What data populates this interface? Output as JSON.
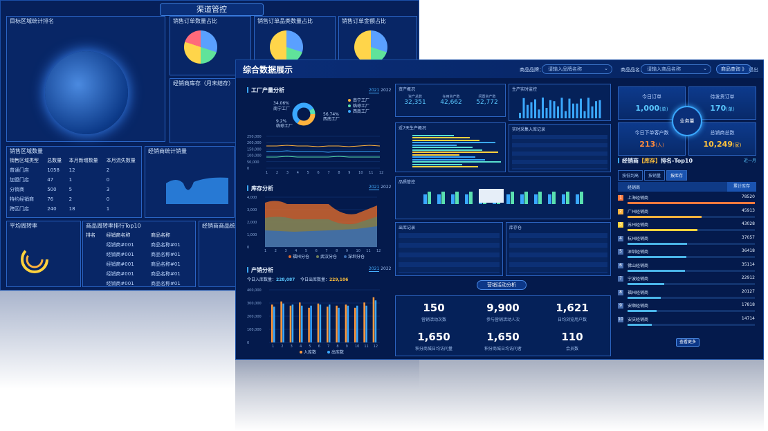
{
  "back": {
    "title": "渠道管控",
    "panels": {
      "region_rank": "目标区域统计排名",
      "sales_order_ratio": "销售订单数量占比",
      "sales_category_ratio": "销售订单品类数量占比",
      "sales_amount_ratio": "销售订单金额占比",
      "dealer_inventory": "经销商库存（月末结存）",
      "sales_region_count": "销售区域数量",
      "dealer_sales": "经销商统计销量",
      "avg_turnover": "平均周转率",
      "product_flow_top10": "商品周转率排行Top10",
      "dealer_product_list": "经销商商品统计"
    },
    "region_table": {
      "headers": [
        "销售区域类型",
        "总数量",
        "本月新增数量",
        "本月流失数量"
      ],
      "rows": [
        [
          "普通门店",
          "1058",
          "12",
          "2"
        ],
        [
          "加盟门店",
          "47",
          "1",
          "0"
        ],
        [
          "分销商",
          "500",
          "5",
          "3"
        ],
        [
          "特约经销商",
          "76",
          "2",
          "0"
        ],
        [
          "跨区门店",
          "240",
          "18",
          "1"
        ]
      ]
    },
    "top10_table": {
      "headers": [
        "排名",
        "经销商名称",
        "商品名称"
      ],
      "rows": [
        [
          "经销商#001",
          "商品名称#01"
        ],
        [
          "经销商#001",
          "商品名称#01"
        ],
        [
          "经销商#001",
          "商品名称#01"
        ],
        [
          "经销商#001",
          "商品名称#01"
        ],
        [
          "经销商#001",
          "商品名称#01"
        ]
      ]
    }
  },
  "front": {
    "title": "综合数据展示",
    "brand_label": "商品品牌：",
    "brand_placeholder": "请输入品牌名称",
    "product_label": "商品品名：",
    "product_placeholder": "请输入商品名称",
    "query_button": "商品查询 》",
    "back_button": "退出",
    "factory": {
      "title": "工厂产量分析",
      "year_on": "2021",
      "year_off": "2022",
      "donut": {
        "slices": [
          {
            "label": "南宁工厂",
            "pct": 34.06
          },
          {
            "label": "西南工厂",
            "pct": 56.74
          },
          {
            "label": "临琼工厂",
            "pct": 9.2
          }
        ]
      },
      "labels": [
        "34.06%",
        "56.74%",
        "9.2%"
      ],
      "legend": [
        "南宁工厂",
        "临琼工厂",
        "西南工厂"
      ],
      "y_ticks": [
        "250,000",
        "200,000",
        "150,000",
        "100,000",
        "50,000",
        "0"
      ],
      "x_ticks": [
        "1",
        "2",
        "3",
        "4",
        "5",
        "6",
        "7",
        "8",
        "9",
        "10",
        "11",
        "12"
      ]
    },
    "inventory": {
      "title": "库存分析",
      "year_on": "2021",
      "year_off": "2022",
      "y_ticks": [
        "4,000",
        "3,000",
        "2,000",
        "1,000",
        "0"
      ],
      "x_ticks": [
        "1",
        "2",
        "3",
        "4",
        "5",
        "6",
        "7",
        "8",
        "9",
        "10",
        "11",
        "12"
      ],
      "legend": [
        "福州分仓",
        "武汉分仓",
        "深圳分仓"
      ]
    },
    "production": {
      "title": "产销分析",
      "year_on": "2021",
      "year_off": "2022",
      "in_label": "今日入库数量：",
      "in_value": "228,087",
      "out_label": "今日出库数量：",
      "out_value": "229,106",
      "y_ticks": [
        "400,000",
        "300,000",
        "200,000",
        "100,000",
        "0"
      ],
      "x_ticks": [
        "1",
        "2",
        "3",
        "4",
        "5",
        "6",
        "7",
        "8",
        "9",
        "10",
        "11",
        "12"
      ],
      "legend": [
        "入库数",
        "出库数"
      ]
    },
    "center": {
      "asset_title": "资产概况",
      "stats": [
        {
          "label": "资产总数",
          "value": "32,351"
        },
        {
          "label": "在用资产数",
          "value": "42,662"
        },
        {
          "label": "闲置资产数",
          "value": "52,772"
        }
      ],
      "production_title": "生产实时监控",
      "factory_title": "近7天生产概况",
      "realtime_title": "实时采集入库记录",
      "quality_title": "品质管控",
      "stock_title": "出库记录",
      "store_title": "库存仓"
    },
    "marketing": {
      "title": "营销活动分析",
      "items": [
        {
          "value": "150",
          "label": "营销活动次数"
        },
        {
          "value": "9,900",
          "label": "参与营销活动人次"
        },
        {
          "value": "1,621",
          "label": "日均浏览用户数"
        },
        {
          "value": "1,650",
          "label": "积分商城日均访问量"
        },
        {
          "value": "1,650",
          "label": "积分商城日均访问者"
        },
        {
          "value": "110",
          "label": "会员数"
        }
      ]
    },
    "kpis": {
      "center_label": "业务量",
      "items": [
        {
          "label": "今日订单",
          "value": "1,000",
          "unit": "(单)",
          "color": "#5ac8ff"
        },
        {
          "label": "待发货订单",
          "value": "170",
          "unit": "(单)",
          "color": "#5ac8ff"
        },
        {
          "label": "今日下单客户数",
          "value": "213",
          "unit": "(人)",
          "color": "#ff8a3d"
        },
        {
          "label": "总销商总数",
          "value": "10,249",
          "unit": "(家)",
          "color": "#ffc23d"
        }
      ]
    },
    "ranking": {
      "title_prefix": "经销商",
      "title_highlight": "【库存】",
      "title_suffix": "排名-Top10",
      "more_link": "近一月",
      "tabs": [
        "按低到高",
        "按销量",
        "按库存"
      ],
      "col_name": "经销商",
      "col_value": "累计库存",
      "rows": [
        {
          "rank": "1",
          "name": "上海经销商",
          "value": "78520",
          "pct": 1.0,
          "color": "#ff7a3d"
        },
        {
          "rank": "2",
          "name": "广州经销商",
          "value": "45913",
          "pct": 0.58,
          "color": "#ffb23d"
        },
        {
          "rank": "3",
          "name": "苏州经销商",
          "value": "43028",
          "pct": 0.55,
          "color": "#ffd23d"
        },
        {
          "rank": "4",
          "name": "杭州经销商",
          "value": "37057",
          "pct": 0.47,
          "color": "#4ab5e8"
        },
        {
          "rank": "5",
          "name": "深圳经销商",
          "value": "36418",
          "pct": 0.46,
          "color": "#4ab5e8"
        },
        {
          "rank": "6",
          "name": "佛山经销商",
          "value": "35114",
          "pct": 0.45,
          "color": "#4ab5e8"
        },
        {
          "rank": "7",
          "name": "宁波经销商",
          "value": "22912",
          "pct": 0.29,
          "color": "#4ab5e8"
        },
        {
          "rank": "8",
          "name": "福州经销商",
          "value": "20127",
          "pct": 0.26,
          "color": "#4ab5e8"
        },
        {
          "rank": "9",
          "name": "安顺经销商",
          "value": "17818",
          "pct": 0.23,
          "color": "#4ab5e8"
        },
        {
          "rank": "10",
          "name": "安庆经销商",
          "value": "14714",
          "pct": 0.19,
          "color": "#4ab5e8"
        }
      ],
      "more_button": "查看更多"
    }
  }
}
